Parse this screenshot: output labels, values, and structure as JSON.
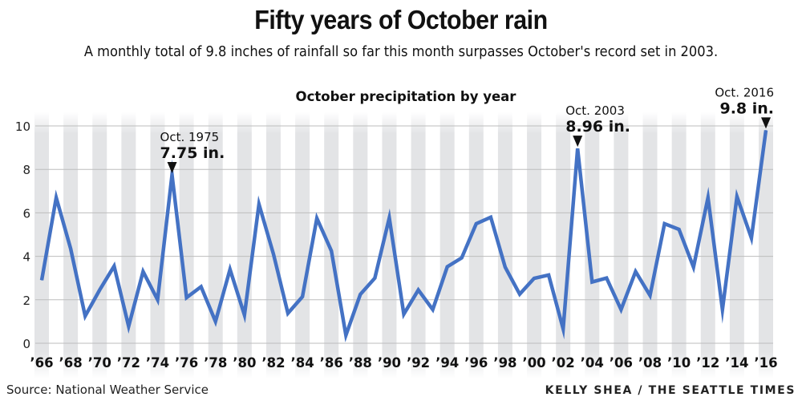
{
  "header": {
    "title": "Fifty years of October rain",
    "subtitle": "A monthly total of 9.8 inches of rainfall so far this month surpasses October's record set in 2003."
  },
  "footer": {
    "source": "Source: National Weather Service",
    "credit": "KELLY SHEA / THE SEATTLE TIMES"
  },
  "colors": {
    "line": "#4472c4",
    "stripe": "#e3e4e6",
    "grid": "#bdbdbd",
    "text": "#111111"
  },
  "chart_data": {
    "type": "line",
    "title": "October precipitation by year",
    "xlabel": "",
    "ylabel": "",
    "ylim": [
      0,
      10
    ],
    "yticks": [
      0,
      2,
      4,
      6,
      8,
      10
    ],
    "grid": true,
    "x": [
      1966,
      1967,
      1968,
      1969,
      1970,
      1971,
      1972,
      1973,
      1974,
      1975,
      1976,
      1977,
      1978,
      1979,
      1980,
      1981,
      1982,
      1983,
      1984,
      1985,
      1986,
      1987,
      1988,
      1989,
      1990,
      1991,
      1992,
      1993,
      1994,
      1995,
      1996,
      1997,
      1998,
      1999,
      2000,
      2001,
      2002,
      2003,
      2004,
      2005,
      2006,
      2007,
      2008,
      2009,
      2010,
      2011,
      2012,
      2013,
      2014,
      2015,
      2016
    ],
    "xtick_labels": [
      "’66",
      "’68",
      "’70",
      "’72",
      "’74",
      "’76",
      "’78",
      "’80",
      "’82",
      "’84",
      "’86",
      "’88",
      "’90",
      "’92",
      "’94",
      "’96",
      "’98",
      "’00",
      "’02",
      "’04",
      "’06",
      "’08",
      "’10",
      "’12",
      "’14",
      "’16"
    ],
    "series": [
      {
        "name": "October precipitation (in.)",
        "values": [
          2.9,
          6.7,
          4.35,
          1.25,
          2.45,
          3.55,
          0.78,
          3.3,
          2.0,
          7.75,
          2.1,
          2.6,
          1.0,
          3.4,
          1.3,
          6.4,
          4.1,
          1.38,
          2.14,
          5.75,
          4.25,
          0.37,
          2.25,
          3.0,
          5.77,
          1.34,
          2.45,
          1.55,
          3.52,
          3.93,
          5.5,
          5.8,
          3.5,
          2.26,
          2.99,
          3.14,
          0.66,
          8.96,
          2.82,
          3.0,
          1.55,
          3.3,
          2.2,
          5.5,
          5.24,
          3.5,
          6.7,
          1.55,
          6.75,
          4.84,
          9.8
        ]
      }
    ],
    "annotations": [
      {
        "year": 1975,
        "label": "Oct. 1975",
        "value_text": "7.75 in.",
        "value": 7.75
      },
      {
        "year": 2003,
        "label": "Oct. 2003",
        "value_text": "8.96 in.",
        "value": 8.96
      },
      {
        "year": 2016,
        "label": "Oct. 2016",
        "value_text": "9.8 in.",
        "value": 9.8
      }
    ]
  }
}
